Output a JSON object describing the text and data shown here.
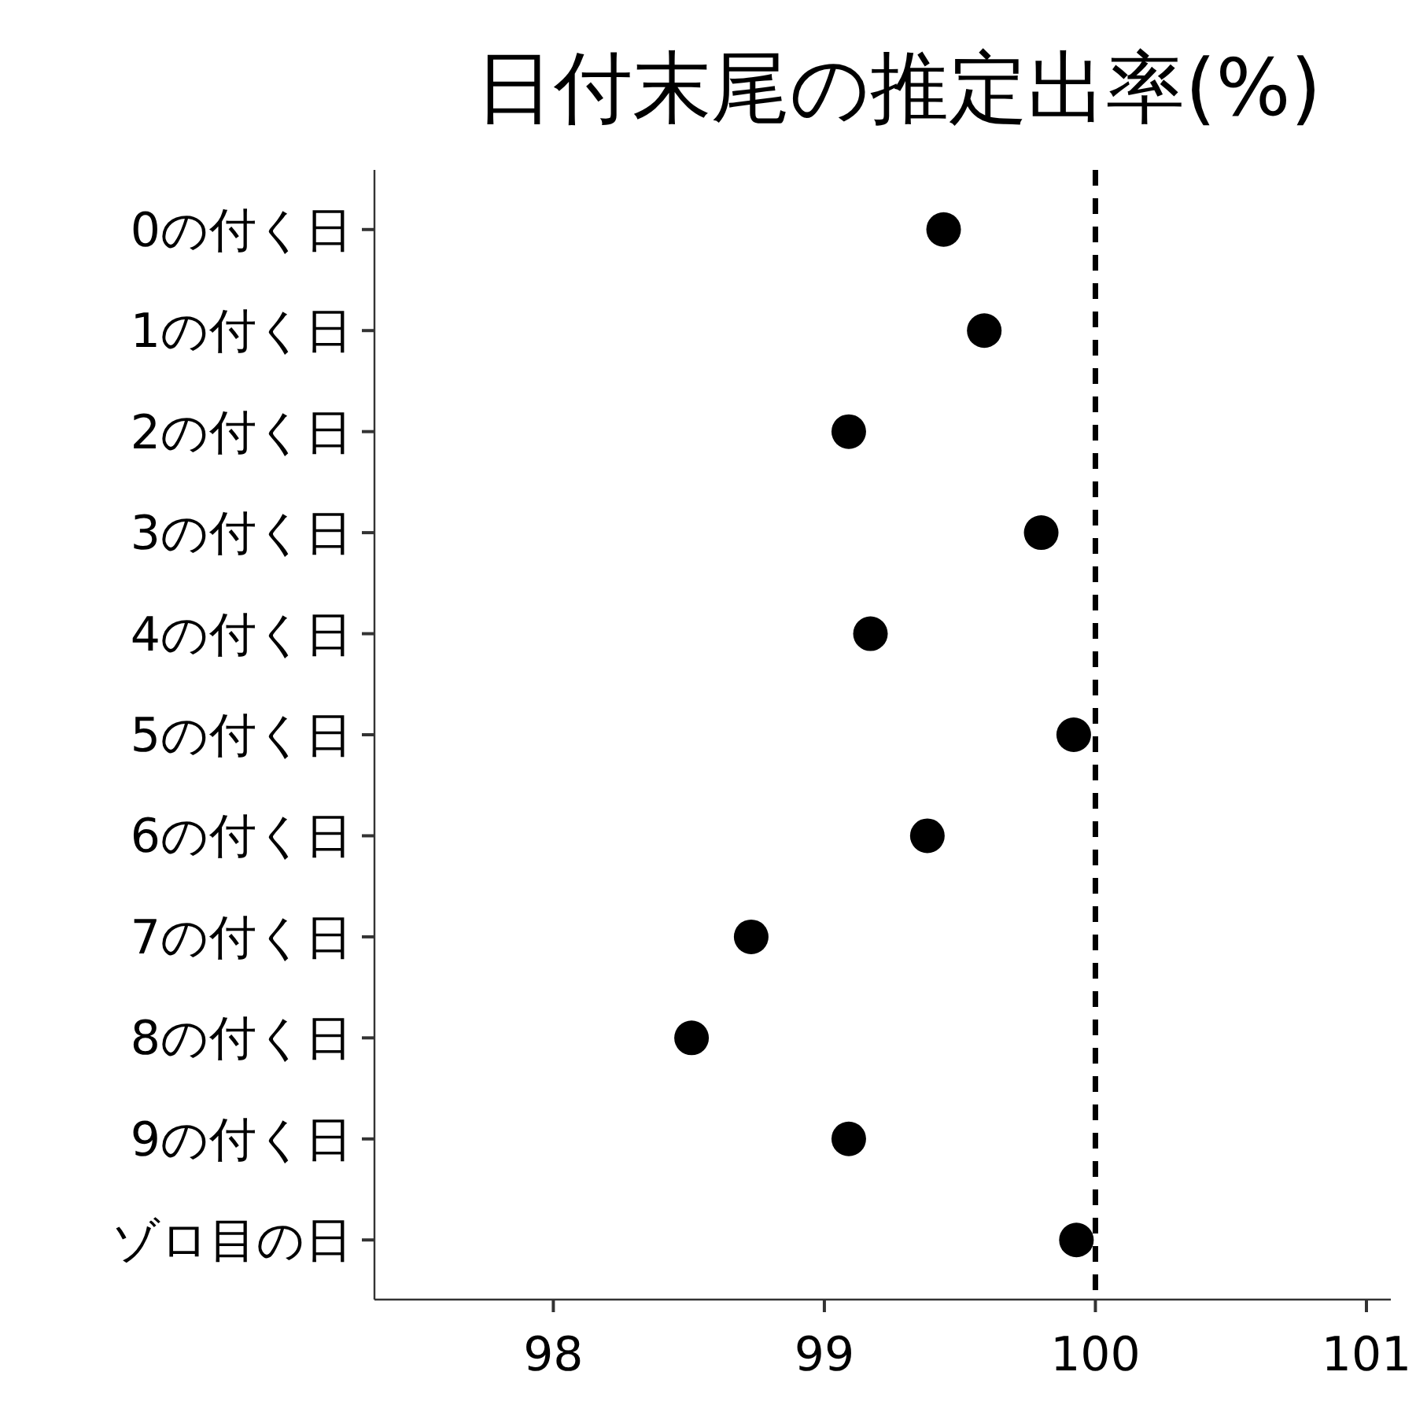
{
  "chart_data": {
    "type": "scatter",
    "title": "日付末尾の推定出率(%)",
    "orientation": "horizontal",
    "categories": [
      "0の付く日",
      "1の付く日",
      "2の付く日",
      "3の付く日",
      "4の付く日",
      "5の付く日",
      "6の付く日",
      "7の付く日",
      "8の付く日",
      "9の付く日",
      "ゾロ目の日"
    ],
    "series": [
      {
        "color": "#000000",
        "values": [
          99.44,
          99.59,
          99.09,
          99.8,
          99.17,
          99.92,
          99.38,
          98.73,
          98.51,
          99.09,
          99.93
        ]
      }
    ],
    "xlim": [
      97.34,
      101.09
    ],
    "xticks": [
      98,
      99,
      100,
      101
    ],
    "marker": "circle",
    "grid": false,
    "ref_lines": [
      {
        "axis": "x",
        "value": 100,
        "color": "#000000",
        "line_style": "dashed"
      }
    ]
  }
}
